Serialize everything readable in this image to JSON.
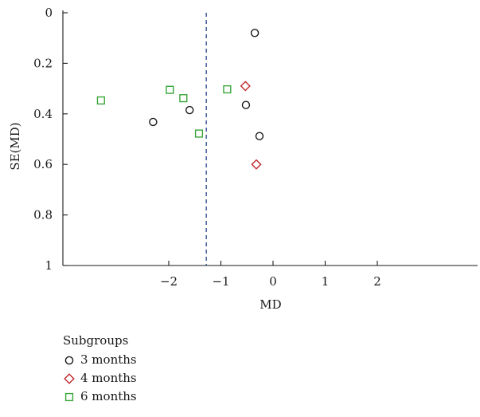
{
  "chart_data": {
    "type": "scatter",
    "title": "",
    "xlabel": "MD",
    "ylabel": "SE(MD)",
    "x_ticks": [
      -2,
      -1,
      0,
      1,
      2
    ],
    "x_tick_labels": [
      "−2",
      "−1",
      "0",
      "1",
      "2"
    ],
    "y_ticks": [
      0,
      0.2,
      0.4,
      0.6,
      0.8,
      1
    ],
    "y_tick_labels": [
      "0",
      "0.2",
      "0.4",
      "0.6",
      "0.8",
      "1"
    ],
    "xlim": [
      -4.0,
      4.0
    ],
    "ylim": [
      0,
      1
    ],
    "y_reversed": true,
    "reference_line": {
      "x": -1.28,
      "style": "dashed",
      "color": "#2f4f8f"
    },
    "grid": false,
    "legend_position": "bottom-left",
    "legend_title": "Subgroups",
    "series": [
      {
        "name": "3 months",
        "marker": "circle",
        "color": "#1a1a1a",
        "points": [
          {
            "x": -0.35,
            "y": 0.08
          },
          {
            "x": -0.52,
            "y": 0.365
          },
          {
            "x": -1.6,
            "y": 0.385
          },
          {
            "x": -2.3,
            "y": 0.432
          },
          {
            "x": -0.26,
            "y": 0.488
          }
        ]
      },
      {
        "name": "4 months",
        "marker": "diamond",
        "color": "#c0282d",
        "points": [
          {
            "x": -0.53,
            "y": 0.29
          },
          {
            "x": -0.32,
            "y": 0.6
          }
        ]
      },
      {
        "name": "6 months",
        "marker": "square",
        "color": "#3aa63a",
        "points": [
          {
            "x": -3.3,
            "y": 0.347
          },
          {
            "x": -1.98,
            "y": 0.305
          },
          {
            "x": -1.72,
            "y": 0.338
          },
          {
            "x": -0.88,
            "y": 0.303
          },
          {
            "x": -1.42,
            "y": 0.478
          }
        ]
      }
    ]
  }
}
